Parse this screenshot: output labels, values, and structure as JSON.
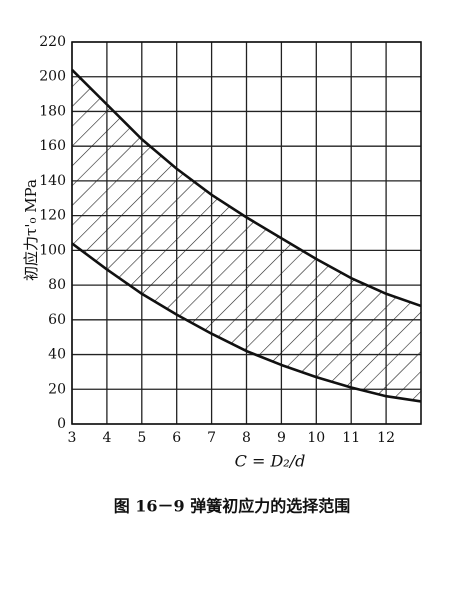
{
  "chart_data": {
    "type": "line",
    "x": [
      3,
      4,
      5,
      6,
      7,
      8,
      9,
      10,
      11,
      12,
      13
    ],
    "series": [
      {
        "color": "#111",
        "values": [
          204,
          184,
          164,
          147,
          132,
          119,
          107,
          95,
          84,
          75,
          68
        ]
      },
      {
        "color": "#111",
        "values": [
          104,
          89,
          75,
          63,
          52,
          42,
          34,
          27,
          21,
          16,
          13
        ]
      }
    ],
    "xlim": [
      3,
      13
    ],
    "xticks": [
      3,
      4,
      5,
      6,
      7,
      8,
      9,
      10,
      11,
      12
    ],
    "ylim": [
      0,
      220
    ],
    "yticks": [
      0,
      20,
      40,
      60,
      80,
      100,
      120,
      140,
      160,
      180,
      200,
      220
    ],
    "grid": true,
    "hatch_between": true,
    "xlabel": "C = D₂/d",
    "ylabel": "初应力τ'₀  MPa",
    "caption": "图 16－9   弹簧初应力的选择范围"
  }
}
